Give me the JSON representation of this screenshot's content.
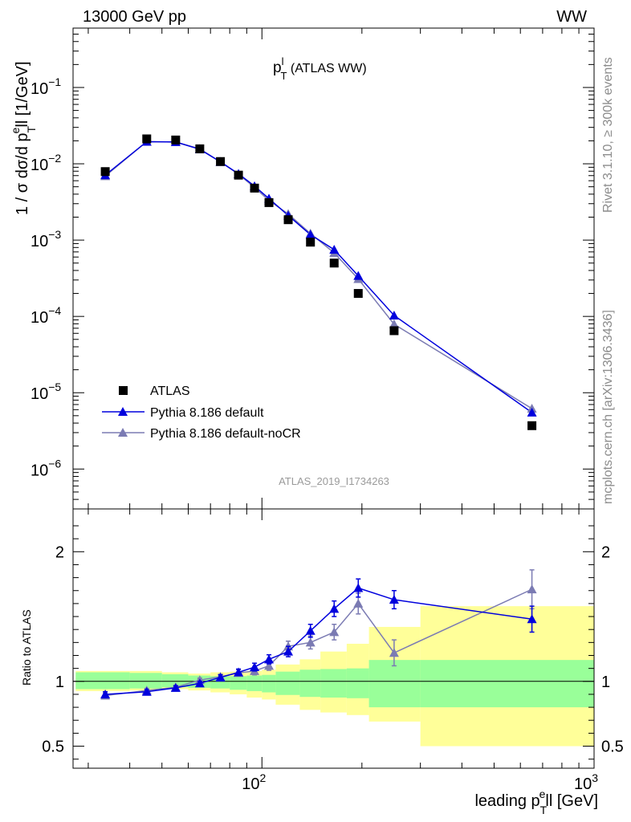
{
  "header": {
    "energy": "13000 GeV pp",
    "process": "WW"
  },
  "side_texts": {
    "rivet": "Rivet 3.1.10, ≥ 300k events",
    "mcplots": "mcplots.cern.ch [arXiv:1306.3436]"
  },
  "title": {
    "base": "p",
    "sup": "l",
    "sub": "T",
    "rest": " (ATLAS WW)"
  },
  "ylabel": {
    "pre": "1 / σ  dσ/d p",
    "sub": "T",
    "sup": "e",
    "post": "ll [1/GeV]"
  },
  "xlabel": {
    "pre": "leading p",
    "sub": "T",
    "sup": "e",
    "post": "ll [GeV]"
  },
  "ratio_label": "Ratio to ATLAS",
  "analysis_id": "ATLAS_2019_I1734263",
  "colors": {
    "atlas": "#000000",
    "default": "#0000dd",
    "nocr": "#7b7bb3",
    "band_inner": "#99ff99",
    "band_outer": "#ffff99"
  },
  "chart_data": [
    {
      "type": "scatter",
      "title": "p_T^l (ATLAS WW)",
      "xlabel": "leading p_T^e ll [GeV]",
      "ylabel": "1 / σ dσ/d p_T^e ll [1/GeV]",
      "xscale": "log",
      "yscale": "log",
      "xlim": [
        27,
        1000
      ],
      "ylim": [
        3e-07,
        0.6
      ],
      "x_tick_labels": [
        "10^2",
        "10^3"
      ],
      "y_tick_labels": [
        "10^-6",
        "10^-5",
        "10^-4",
        "10^-3",
        "10^-2",
        "10^-1"
      ],
      "legend_position": "bottom-left",
      "x": [
        33.75,
        45,
        55,
        65,
        75,
        85,
        95,
        105,
        120,
        140,
        165,
        195,
        250,
        650
      ],
      "series": [
        {
          "name": "ATLAS",
          "marker": "square",
          "values": [
            0.0079,
            0.0212,
            0.0205,
            0.0157,
            0.0107,
            0.0071,
            0.0048,
            0.0031,
            0.00185,
            0.00094,
            0.0005,
            0.0002,
            6.5e-05,
            3.7e-06
          ]
        },
        {
          "name": "Pythia 8.186 default",
          "marker": "triangle",
          "values": [
            0.0071,
            0.0195,
            0.0193,
            0.0155,
            0.0106,
            0.0074,
            0.0051,
            0.0035,
            0.0021,
            0.00118,
            0.00075,
            0.00034,
            0.000103,
            5.5e-06
          ]
        },
        {
          "name": "Pythia 8.186 default-noCR",
          "marker": "triangle",
          "values": [
            0.0069,
            0.0195,
            0.0193,
            0.0157,
            0.0106,
            0.0073,
            0.0049,
            0.0033,
            0.0022,
            0.00122,
            0.00068,
            0.00031,
            7.9e-05,
            6.2e-06
          ]
        }
      ]
    },
    {
      "type": "line",
      "ylabel": "Ratio to ATLAS",
      "xscale": "log",
      "xlim": [
        27,
        1000
      ],
      "ylim": [
        0.33,
        2.33
      ],
      "y_tick_labels": [
        "0.5",
        "1",
        "2"
      ],
      "bin_edges": [
        27.5,
        40,
        50,
        60,
        70,
        80,
        90,
        100,
        110,
        130,
        150,
        180,
        210,
        300,
        1000
      ],
      "band_inner": [
        [
          0.94,
          1.07
        ],
        [
          0.945,
          1.065
        ],
        [
          0.955,
          1.055
        ],
        [
          0.95,
          1.045
        ],
        [
          0.945,
          1.04
        ],
        [
          0.935,
          1.04
        ],
        [
          0.925,
          1.045
        ],
        [
          0.915,
          1.05
        ],
        [
          0.895,
          1.075
        ],
        [
          0.88,
          1.09
        ],
        [
          0.875,
          1.095
        ],
        [
          0.87,
          1.1
        ],
        [
          0.8,
          1.165
        ],
        [
          0.8,
          1.165
        ]
      ],
      "band_outer": [
        [
          0.925,
          1.08
        ],
        [
          0.93,
          1.08
        ],
        [
          0.94,
          1.07
        ],
        [
          0.93,
          1.06
        ],
        [
          0.915,
          1.07
        ],
        [
          0.9,
          1.075
        ],
        [
          0.875,
          1.08
        ],
        [
          0.86,
          1.09
        ],
        [
          0.82,
          1.13
        ],
        [
          0.78,
          1.17
        ],
        [
          0.76,
          1.23
        ],
        [
          0.74,
          1.29
        ],
        [
          0.69,
          1.42
        ],
        [
          0.5,
          1.58
        ]
      ],
      "x": [
        33.75,
        45,
        55,
        65,
        75,
        85,
        95,
        105,
        120,
        140,
        165,
        195,
        250,
        650
      ],
      "series": [
        {
          "name": "Pythia 8.186 default",
          "values": [
            0.9,
            0.92,
            0.95,
            0.985,
            1.03,
            1.07,
            1.11,
            1.17,
            1.23,
            1.39,
            1.56,
            1.72,
            1.63,
            1.48
          ],
          "errors": [
            0.02,
            0.015,
            0.015,
            0.015,
            0.02,
            0.025,
            0.03,
            0.035,
            0.04,
            0.05,
            0.06,
            0.07,
            0.07,
            0.1
          ]
        },
        {
          "name": "Pythia 8.186 default-noCR",
          "values": [
            0.89,
            0.93,
            0.955,
            1.01,
            1.035,
            1.065,
            1.08,
            1.12,
            1.27,
            1.3,
            1.38,
            1.6,
            1.22,
            1.71
          ],
          "errors": [
            0.02,
            0.015,
            0.015,
            0.015,
            0.02,
            0.025,
            0.03,
            0.035,
            0.04,
            0.05,
            0.06,
            0.08,
            0.1,
            0.15
          ]
        }
      ]
    }
  ]
}
